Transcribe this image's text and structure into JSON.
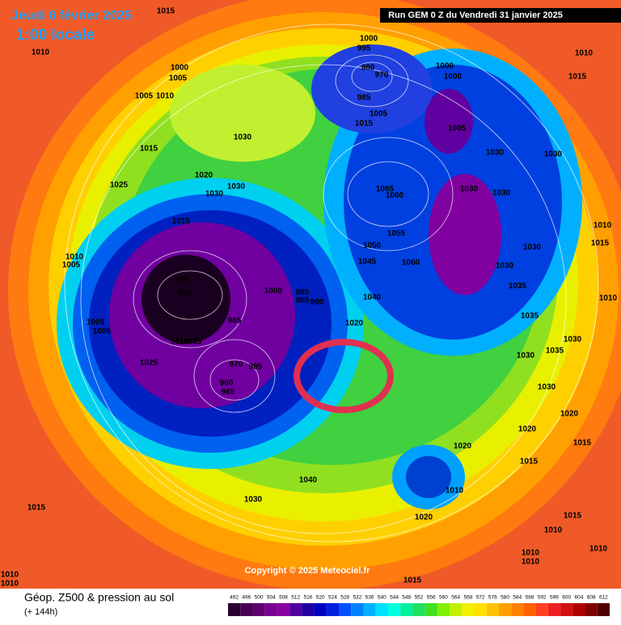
{
  "header": {
    "date": "Jeudi 6 février 2025",
    "time": "1:00 locale",
    "run": "Run GEM 0 Z du Vendredi 31 janvier 2025"
  },
  "footer": {
    "title": "Géop. Z500 & pression au sol",
    "lead": "(+ 144h)",
    "copyright": "Copyright © 2025 Meteociel.fr"
  },
  "scale": {
    "values": [
      492,
      496,
      500,
      504,
      508,
      512,
      516,
      520,
      524,
      528,
      532,
      536,
      540,
      544,
      548,
      552,
      556,
      560,
      564,
      568,
      572,
      576,
      580,
      584,
      588,
      592,
      596,
      600,
      604,
      608,
      612
    ],
    "colors": [
      "#2a0030",
      "#4a0050",
      "#600070",
      "#780090",
      "#8800a0",
      "#5000a0",
      "#2000a0",
      "#0000c0",
      "#0020e0",
      "#0050ff",
      "#0080ff",
      "#00b0ff",
      "#00e0ff",
      "#00ffe0",
      "#00f0a0",
      "#20e060",
      "#40e020",
      "#80f000",
      "#c0f000",
      "#f0f000",
      "#ffe000",
      "#ffc000",
      "#ffa000",
      "#ff8000",
      "#ff6000",
      "#ff4020",
      "#f02020",
      "#d01010",
      "#b00000",
      "#800000",
      "#500000"
    ]
  },
  "isobar_labels": [
    1015,
    1010,
    1000,
    995,
    980,
    970,
    985,
    1000,
    1000,
    1010,
    1015,
    1000,
    1005,
    1005,
    1010,
    1005,
    1005,
    1015,
    1030,
    1015,
    1030,
    1030,
    1025,
    1020,
    1030,
    1030,
    1065,
    1060,
    1030,
    1030,
    1015,
    1055,
    1010,
    1015,
    1050,
    1060,
    1030,
    1030,
    1010,
    1005,
    1045,
    995,
    990,
    1000,
    985,
    985,
    990,
    1035,
    1040,
    1010,
    1005,
    1005,
    985,
    1020,
    1035,
    1010,
    1035,
    1025,
    1030,
    1035,
    1030,
    970,
    985,
    960,
    965,
    1030,
    1020,
    1020,
    1020,
    1015,
    1015,
    1040,
    1030,
    1010,
    1015,
    1020,
    1015,
    1010,
    1010,
    1010,
    1010,
    1010,
    1010,
    1015
  ]
}
